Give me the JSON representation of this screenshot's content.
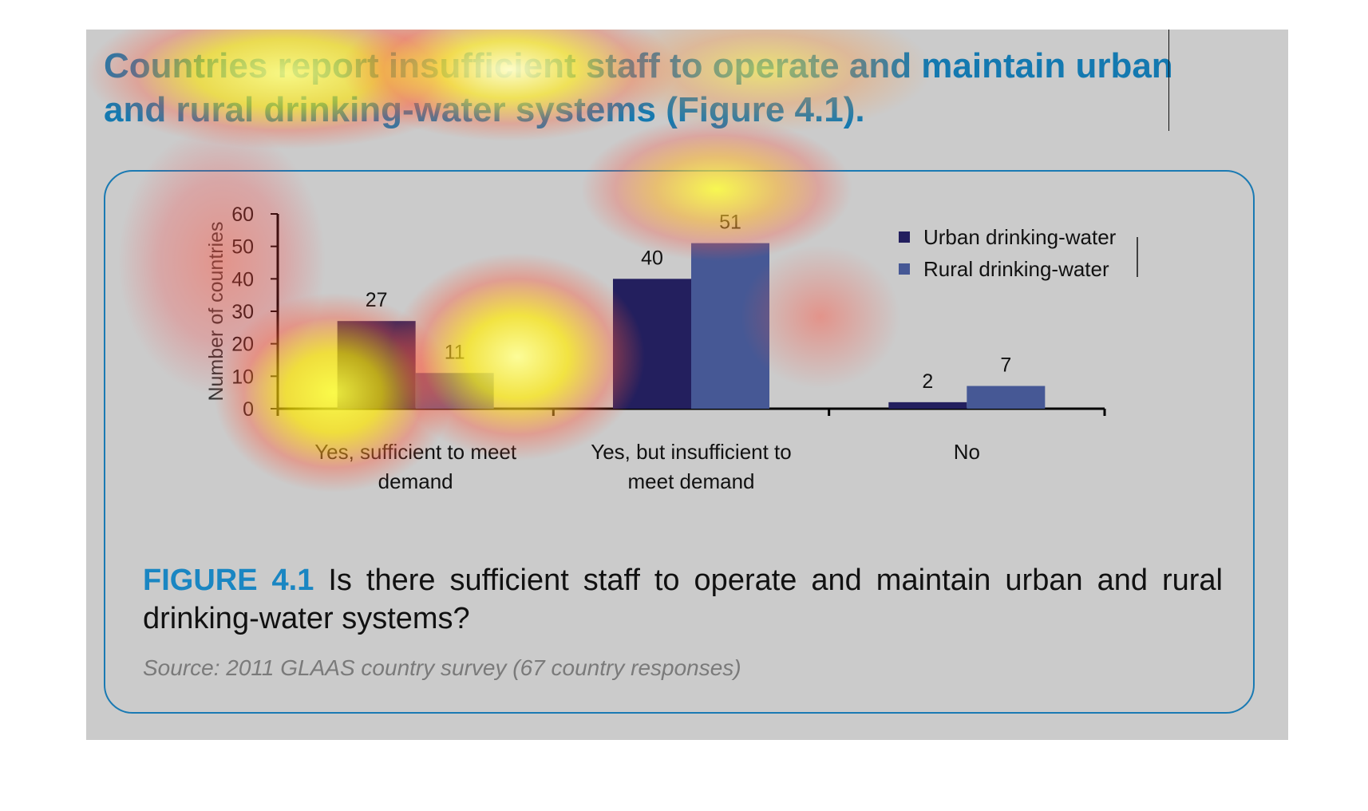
{
  "headline": {
    "text": "Countries report insufficient staff to operate and maintain urban and rural drinking-water systems (Figure 4.1)."
  },
  "figure": {
    "label": "FIGURE 4.1",
    "caption": "Is there sufficient staff to operate and maintain urban and rural drinking-water systems?",
    "source": "Source: 2011 GLAAS country survey (67 country responses)"
  },
  "colors": {
    "accent": "#1479b0",
    "urban": "#231f5e",
    "rural": "#465895",
    "frame": "#1a7ab3",
    "page_bg": "#cbcbcb"
  },
  "chart_data": {
    "type": "bar",
    "title": "",
    "categories": [
      "Yes, sufficient to meet demand",
      "Yes, but insufficient to meet demand",
      "No"
    ],
    "category_lines": [
      [
        "Yes, sufficient to meet",
        "demand"
      ],
      [
        "Yes, but insufficient to",
        "meet demand"
      ],
      [
        "No"
      ]
    ],
    "series": [
      {
        "name": "Urban drinking-water",
        "values": [
          27,
          40,
          2
        ]
      },
      {
        "name": "Rural drinking-water",
        "values": [
          11,
          51,
          7
        ]
      }
    ],
    "xlabel": "",
    "ylabel": "Number of countries",
    "ylim": [
      0,
      60
    ],
    "yticks": [
      0,
      10,
      20,
      30,
      40,
      50,
      60
    ],
    "legend_position": "top-right",
    "grid": false,
    "data_labels": true
  }
}
